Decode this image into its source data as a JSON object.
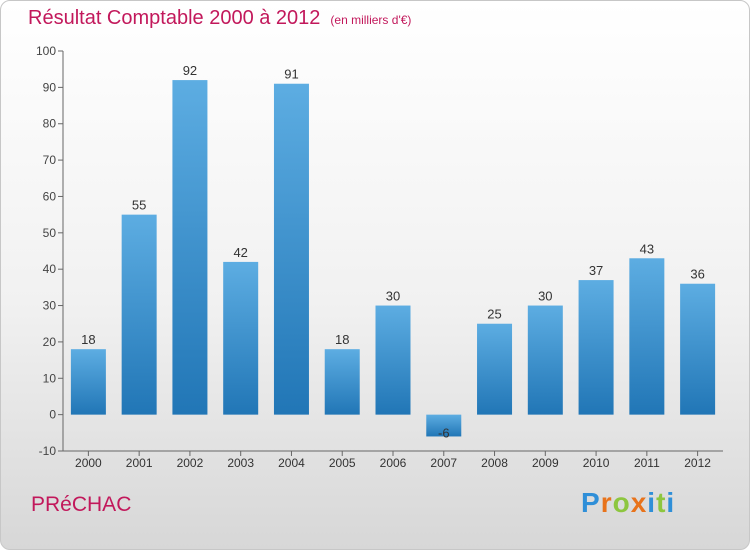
{
  "title": "Résultat Comptable 2000 à 2012",
  "subtitle": "(en milliers d'€)",
  "commune": "PRéCHAC",
  "brand": {
    "letters": [
      "P",
      "r",
      "o",
      "x",
      "i",
      "t",
      "i"
    ],
    "colors": [
      "#2f8fd8",
      "#e8731b",
      "#8dc63f",
      "#e8731b",
      "#2f8fd8",
      "#8dc63f",
      "#2f8fd8"
    ]
  },
  "colors": {
    "title": "#c2185b",
    "bar_light": "#5dade2",
    "bar_dark": "#2176b6"
  },
  "chart_data": {
    "type": "bar",
    "categories": [
      "2000",
      "2001",
      "2002",
      "2003",
      "2004",
      "2005",
      "2006",
      "2007",
      "2008",
      "2009",
      "2010",
      "2011",
      "2012"
    ],
    "values": [
      18,
      55,
      92,
      42,
      91,
      18,
      30,
      -6,
      25,
      30,
      37,
      43,
      36
    ],
    "data_labels": [
      "18",
      "55",
      "92",
      "42",
      "91",
      "18",
      "30",
      "-6",
      "25",
      "30",
      "37",
      "43",
      "36"
    ],
    "title": "Résultat Comptable 2000 à 2012",
    "subtitle": "(en milliers d'€)",
    "xlabel": "",
    "ylabel": "",
    "ylim": [
      -10,
      100
    ],
    "yticks": [
      -10,
      0,
      10,
      20,
      30,
      40,
      50,
      60,
      70,
      80,
      90,
      100
    ],
    "grid": false,
    "legend": "none"
  }
}
